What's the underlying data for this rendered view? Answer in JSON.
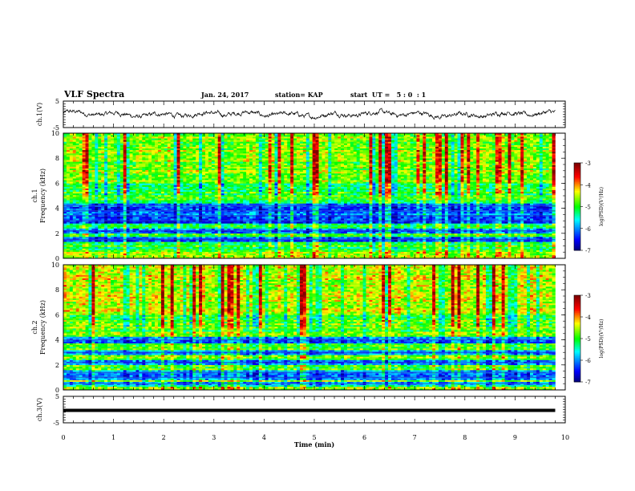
{
  "header": {
    "title": "VLF Spectra",
    "date": "Jan. 24, 2017",
    "station": "station= KAP",
    "start": "start  UT =   5 : 0  : 1"
  },
  "chart_data": [
    {
      "type": "line",
      "title": "",
      "ylabel": "ch.1(V)",
      "ylim": [
        -5,
        5
      ],
      "yticks": [
        "5",
        "-5"
      ],
      "series": [
        {
          "x_range_min": [
            0,
            9.8
          ],
          "description_of_trace": "noisy waveform, amplitude roughly -1.5 to 2 V"
        }
      ]
    },
    {
      "type": "heatmap",
      "ylabel_top": "ch.1",
      "ylabel": "Frequency (kHz)",
      "ylim": [
        0,
        10
      ],
      "yticks": [
        "0",
        "2",
        "4",
        "6",
        "8",
        "10"
      ],
      "colorbar": {
        "label": "log(PSD)(V²/Hz)",
        "range": [
          -7,
          -3
        ],
        "ticks": [
          "-3",
          "-4",
          "-5",
          "-6",
          "-7"
        ]
      },
      "dark_bands_khz": [
        1.5,
        2.2,
        3.0,
        3.4,
        3.8,
        4.2
      ],
      "dominant_level": -5
    },
    {
      "type": "heatmap",
      "ylabel_top": "ch.2",
      "ylabel": "Frequency (kHz)",
      "ylim": [
        0,
        10
      ],
      "yticks": [
        "0",
        "2",
        "4",
        "6",
        "8",
        "10"
      ],
      "colorbar": {
        "label": "log(PSD)(V²/Hz)",
        "range": [
          -7,
          -3
        ],
        "ticks": [
          "-3",
          "-4",
          "-5",
          "-6",
          "-7"
        ]
      },
      "dark_bands_khz": [
        0.5,
        1.0,
        1.4,
        2.2,
        3.0,
        4.0
      ],
      "dominant_level": -4.8
    },
    {
      "type": "line",
      "ylabel": "ch.3(V)",
      "ylim": [
        -5,
        5
      ],
      "yticks": [
        "5",
        "-5"
      ],
      "series": [
        {
          "constant_value": 0
        }
      ]
    }
  ],
  "xaxis": {
    "label": "Time (min)",
    "xlim": [
      0,
      10
    ],
    "ticks": [
      "0",
      "1",
      "2",
      "3",
      "4",
      "5",
      "6",
      "7",
      "8",
      "9",
      "10"
    ]
  },
  "colors": {
    "line": "#000000",
    "colormap": [
      "#000080",
      "#0000ff",
      "#00ffff",
      "#00ff00",
      "#ffff00",
      "#ff0000",
      "#800000"
    ]
  }
}
